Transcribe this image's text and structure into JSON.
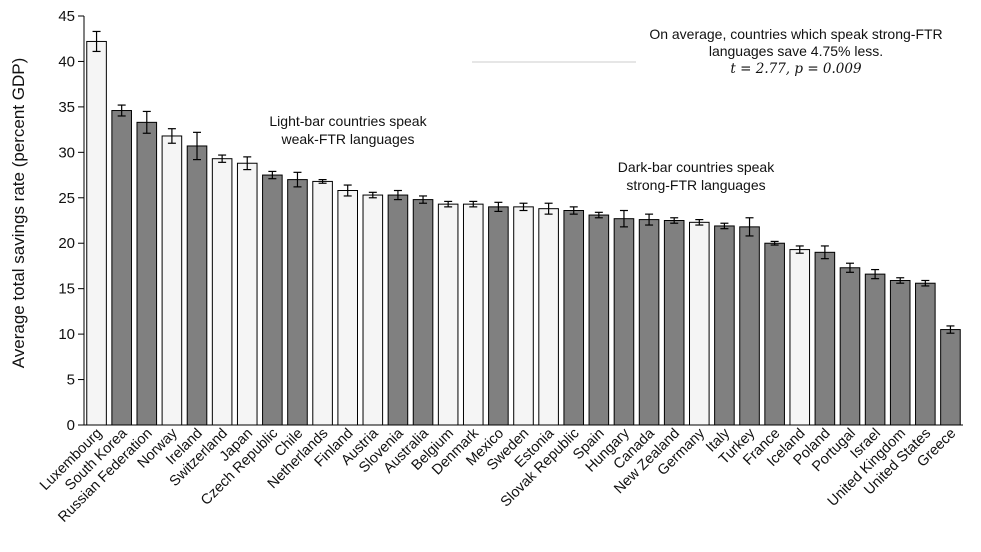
{
  "chart_data": {
    "type": "bar",
    "ylabel": "Average total savings rate (percent GDP)",
    "xlabel": "",
    "ylim": [
      0,
      45
    ],
    "yticks": [
      0,
      5,
      10,
      15,
      20,
      25,
      30,
      35,
      40,
      45
    ],
    "grid": false,
    "legend": "none",
    "colors": {
      "weak": "#f5f5f5",
      "strong": "#808080",
      "stroke": "#000000"
    },
    "bars": [
      {
        "country": "Luxembourg",
        "value": 42.2,
        "err": 1.1,
        "group": "weak"
      },
      {
        "country": "South Korea",
        "value": 34.6,
        "err": 0.6,
        "group": "strong"
      },
      {
        "country": "Russian Federation",
        "value": 33.3,
        "err": 1.2,
        "group": "strong"
      },
      {
        "country": "Norway",
        "value": 31.8,
        "err": 0.8,
        "group": "weak"
      },
      {
        "country": "Ireland",
        "value": 30.7,
        "err": 1.5,
        "group": "strong"
      },
      {
        "country": "Switzerland",
        "value": 29.3,
        "err": 0.4,
        "group": "weak"
      },
      {
        "country": "Japan",
        "value": 28.8,
        "err": 0.7,
        "group": "weak"
      },
      {
        "country": "Czech Republic",
        "value": 27.5,
        "err": 0.4,
        "group": "strong"
      },
      {
        "country": "Chile",
        "value": 27.0,
        "err": 0.8,
        "group": "strong"
      },
      {
        "country": "Netherlands",
        "value": 26.8,
        "err": 0.2,
        "group": "weak"
      },
      {
        "country": "Finland",
        "value": 25.8,
        "err": 0.6,
        "group": "weak"
      },
      {
        "country": "Austria",
        "value": 25.3,
        "err": 0.3,
        "group": "weak"
      },
      {
        "country": "Slovenia",
        "value": 25.3,
        "err": 0.5,
        "group": "strong"
      },
      {
        "country": "Australia",
        "value": 24.8,
        "err": 0.4,
        "group": "strong"
      },
      {
        "country": "Belgium",
        "value": 24.3,
        "err": 0.3,
        "group": "weak"
      },
      {
        "country": "Denmark",
        "value": 24.3,
        "err": 0.3,
        "group": "weak"
      },
      {
        "country": "Mexico",
        "value": 24.0,
        "err": 0.5,
        "group": "strong"
      },
      {
        "country": "Sweden",
        "value": 24.0,
        "err": 0.4,
        "group": "weak"
      },
      {
        "country": "Estonia",
        "value": 23.8,
        "err": 0.6,
        "group": "weak"
      },
      {
        "country": "Slovak Republic",
        "value": 23.6,
        "err": 0.4,
        "group": "strong"
      },
      {
        "country": "Spain",
        "value": 23.1,
        "err": 0.3,
        "group": "strong"
      },
      {
        "country": "Hungary",
        "value": 22.7,
        "err": 0.9,
        "group": "strong"
      },
      {
        "country": "Canada",
        "value": 22.6,
        "err": 0.6,
        "group": "strong"
      },
      {
        "country": "New Zealand",
        "value": 22.5,
        "err": 0.3,
        "group": "strong"
      },
      {
        "country": "Germany",
        "value": 22.3,
        "err": 0.3,
        "group": "weak"
      },
      {
        "country": "Italy",
        "value": 21.9,
        "err": 0.3,
        "group": "strong"
      },
      {
        "country": "Turkey",
        "value": 21.8,
        "err": 1.0,
        "group": "strong"
      },
      {
        "country": "France",
        "value": 20.0,
        "err": 0.2,
        "group": "strong"
      },
      {
        "country": "Iceland",
        "value": 19.3,
        "err": 0.4,
        "group": "weak"
      },
      {
        "country": "Poland",
        "value": 19.0,
        "err": 0.7,
        "group": "strong"
      },
      {
        "country": "Portugal",
        "value": 17.3,
        "err": 0.5,
        "group": "strong"
      },
      {
        "country": "Israel",
        "value": 16.6,
        "err": 0.5,
        "group": "strong"
      },
      {
        "country": "United Kingdom",
        "value": 15.9,
        "err": 0.3,
        "group": "strong"
      },
      {
        "country": "United States",
        "value": 15.6,
        "err": 0.3,
        "group": "strong"
      },
      {
        "country": "Greece",
        "value": 10.5,
        "err": 0.4,
        "group": "strong"
      }
    ],
    "annotations": {
      "weak_line1": "Light-bar countries speak",
      "weak_line2": "weak-FTR languages",
      "strong_line1": "Dark-bar countries speak",
      "strong_line2": "strong-FTR languages",
      "summary_line1": "On average, countries which speak strong-FTR",
      "summary_line2": "languages save 4.75% less.",
      "stat_line": "t = 2.77, p = 0.009"
    }
  }
}
